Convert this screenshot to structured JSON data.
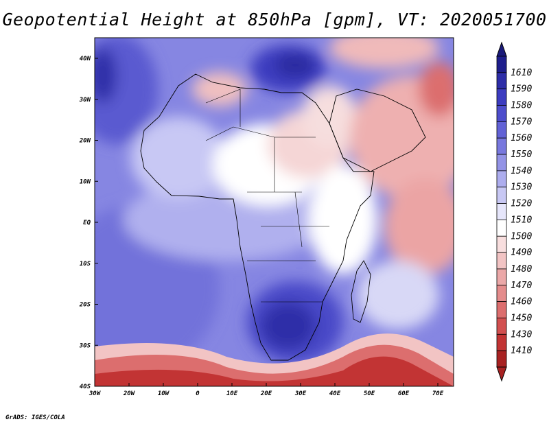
{
  "title": "Geopotential Height at 850hPa [gpm], VT: 2020051700",
  "credit": "GrADS: IGES/COLA",
  "lat_ticks": [
    "40N",
    "30N",
    "20N",
    "10N",
    "EQ",
    "10S",
    "20S",
    "30S",
    "40S"
  ],
  "lon_ticks": [
    "30W",
    "20W",
    "10W",
    "0",
    "10E",
    "20E",
    "30E",
    "40E",
    "50E",
    "60E",
    "70E"
  ],
  "colorbar": {
    "levels": [
      {
        "label": "1610",
        "color": "#1e1e8c"
      },
      {
        "label": "1590",
        "color": "#2d2da8"
      },
      {
        "label": "1580",
        "color": "#3c3cc0"
      },
      {
        "label": "1570",
        "color": "#4d4dcc"
      },
      {
        "label": "1560",
        "color": "#6262d6"
      },
      {
        "label": "1550",
        "color": "#7878de"
      },
      {
        "label": "1540",
        "color": "#9393e6"
      },
      {
        "label": "1530",
        "color": "#adadee"
      },
      {
        "label": "1520",
        "color": "#c8c8f4"
      },
      {
        "label": "1510",
        "color": "#e6e6fb"
      },
      {
        "label": "1500",
        "color": "#ffffff"
      },
      {
        "label": "1490",
        "color": "#f8dede"
      },
      {
        "label": "1480",
        "color": "#f2c4c4"
      },
      {
        "label": "1470",
        "color": "#eba8a8"
      },
      {
        "label": "1460",
        "color": "#e48c8c"
      },
      {
        "label": "1450",
        "color": "#dc6e6e"
      },
      {
        "label": "1430",
        "color": "#d25050"
      },
      {
        "label": "1410",
        "color": "#c23434"
      },
      {
        "label": "",
        "color": "#a82222"
      }
    ],
    "top_arrow_color": "#1a1a7a",
    "bottom_arrow_color": "#a82222"
  }
}
